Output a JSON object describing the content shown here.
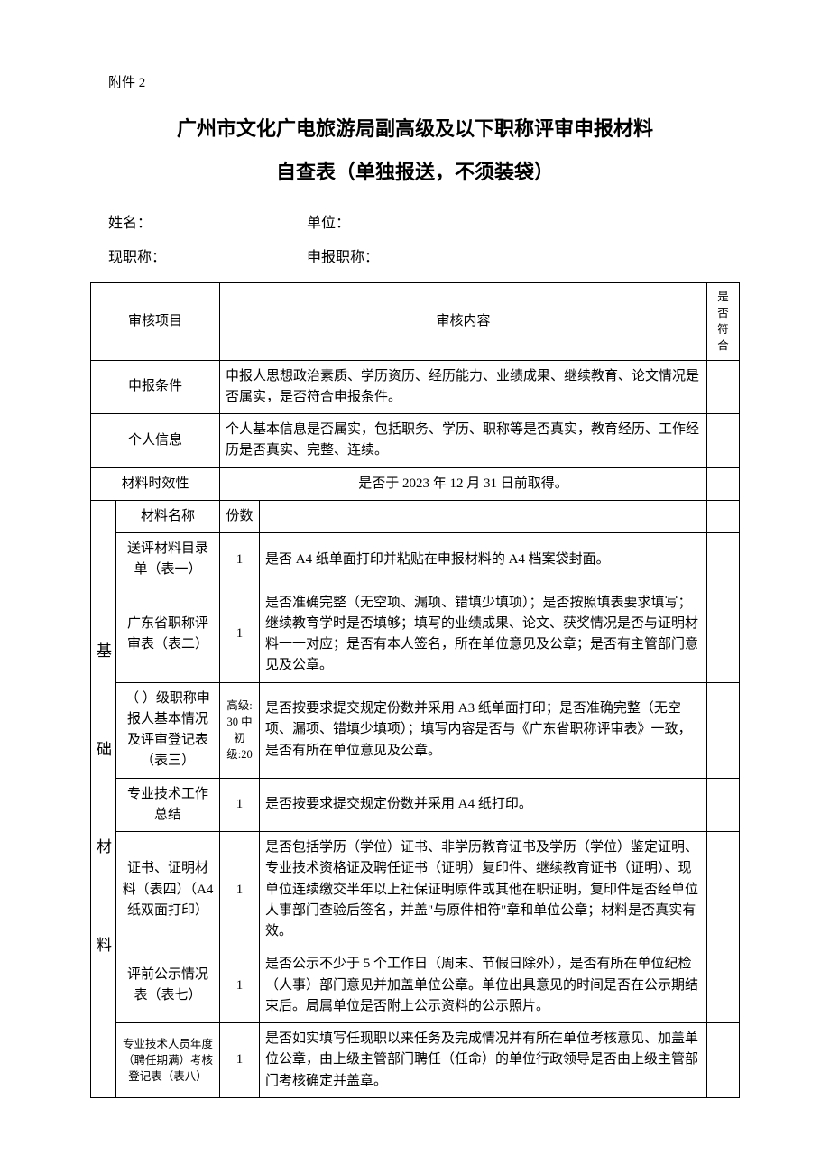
{
  "attachment": "附件 2",
  "title_line1": "广州市文化广电旅游局副高级及以下职称评审申报材料",
  "title_line2": "自查表（单独报送，不须装袋）",
  "info": {
    "name_label": "姓名：",
    "unit_label": "单位：",
    "current_title_label": "现职称：",
    "apply_title_label": "申报职称："
  },
  "headers": {
    "audit_item": "审核项目",
    "audit_content": "审核内容",
    "conform": "是否符合",
    "material_name": "材料名称",
    "copies": "份数"
  },
  "rows": {
    "apply_condition": {
      "label": "申报条件",
      "content": "申报人思想政治素质、学历资历、经历能力、业绩成果、继续教育、论文情况是否属实，是否符合申报条件。"
    },
    "personal_info": {
      "label": "个人信息",
      "content": "个人基本信息是否属实，包括职务、学历、职称等是否真实，教育经历、工作经历是否真实、完整、连续。"
    },
    "material_validity": {
      "label": "材料时效性",
      "content": "是否于 2023 年 12 月 31 日前取得。"
    }
  },
  "group_label": "基础材料",
  "materials": [
    {
      "name": "送评材料目录单（表一）",
      "copies": "1",
      "content": "是否 A4 纸单面打印并粘贴在申报材料的 A4 档案袋封面。"
    },
    {
      "name": "广东省职称评审表（表二）",
      "copies": "1",
      "content": "是否准确完整（无空项、漏项、错填少填项）；是否按照填表要求填写；继续教育学时是否填够；填写的业绩成果、论文、获奖情况是否与证明材料一一对应；是否有本人签名，所在单位意见及公章；是否有主管部门意见及公章。"
    },
    {
      "name": "（ ）级职称申报人基本情况及评审登记表（表三）",
      "copies": "高级: 30 中初级:20",
      "content": "是否按要求提交规定份数并采用 A3 纸单面打印；是否准确完整（无空项、漏项、错填少填项）；填写内容是否与《广东省职称评审表》一致，是否有所在单位意见及公章。"
    },
    {
      "name": "专业技术工作总结",
      "copies": "1",
      "content": "是否按要求提交规定份数并采用 A4 纸打印。"
    },
    {
      "name": "证书、证明材料（表四）（A4 纸双面打印）",
      "copies": "1",
      "content": "是否包括学历（学位）证书、非学历教育证书及学历（学位）鉴定证明、专业技术资格证及聘任证书（证明）复印件、继续教育证书（证明）、现单位连续缴交半年以上社保证明原件或其他在职证明，复印件是否经单位人事部门查验后签名，并盖\"与原件相符\"章和单位公章；材料是否真实有效。"
    },
    {
      "name": "评前公示情况表（表七）",
      "copies": "1",
      "content": "是否公示不少于 5 个工作日（周末、节假日除外），是否有所在单位纪检（人事）部门意见并加盖单位公章。单位出具意见的时间是否在公示期结束后。局属单位是否附上公示资料的公示照片。"
    },
    {
      "name": "专业技术人员年度（聘任期满）考核登记表（表八）",
      "copies": "1",
      "content": "是否如实填写任现职以来任务及完成情况并有所在单位考核意见、加盖单位公章，由上级主管部门聘任（任命）的单位行政领导是否由上级主管部门考核确定并盖章。"
    }
  ],
  "colors": {
    "text": "#000000",
    "background": "#ffffff",
    "border": "#000000"
  }
}
